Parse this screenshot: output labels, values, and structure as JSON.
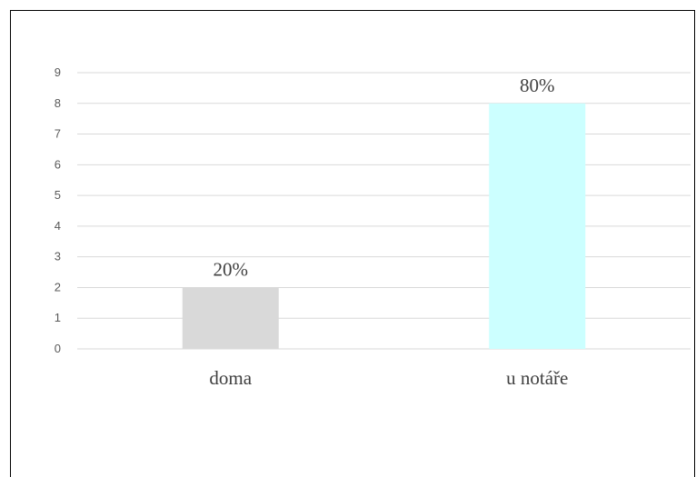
{
  "chart_data": {
    "type": "bar",
    "categories": [
      "doma",
      "u notáře"
    ],
    "values": [
      2,
      8
    ],
    "data_labels": [
      "20%",
      "80%"
    ],
    "bar_colors": [
      "#d9d9d9",
      "#ccffff"
    ],
    "ylim": [
      0,
      9
    ],
    "yticks": [
      "0",
      "1",
      "2",
      "3",
      "4",
      "5",
      "6",
      "7",
      "8",
      "9"
    ],
    "grid": true,
    "gridline_color": "#d9d9d9",
    "legend": "none"
  }
}
